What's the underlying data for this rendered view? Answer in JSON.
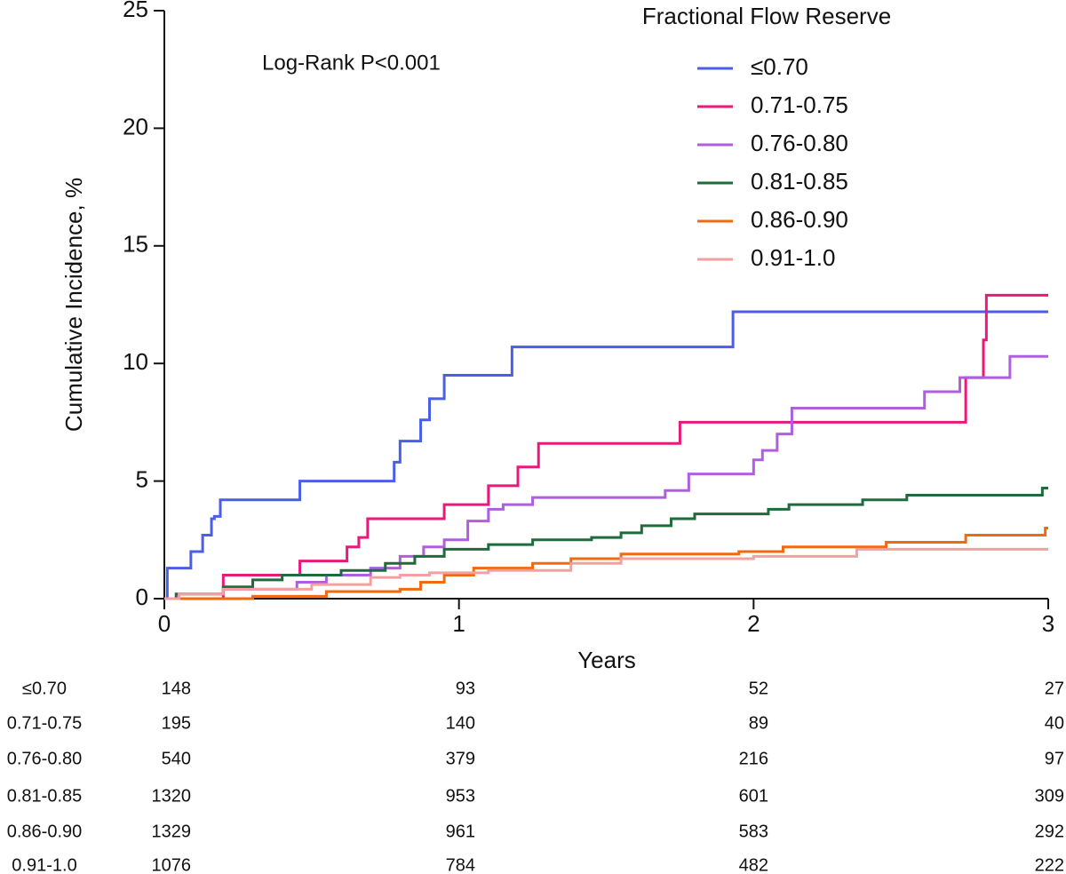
{
  "chart_data": {
    "type": "line",
    "drawstyle": "steps-post",
    "legend_title": "Fractional Flow Reserve",
    "annotation": "Log-Rank P<0.001",
    "x_label": "Years",
    "y_label": "Cumulative Incidence, %",
    "xlim": [
      0,
      3
    ],
    "xticks": [
      0,
      1,
      2,
      3
    ],
    "ylim": [
      0,
      25
    ],
    "yticks": [
      0,
      5,
      10,
      15,
      20,
      25
    ],
    "grid": false,
    "legend_position": "upper right",
    "series": [
      {
        "name": "≤0.70",
        "color": "#4b5ee8",
        "x": [
          0,
          0.01,
          0.09,
          0.13,
          0.16,
          0.17,
          0.19,
          0.46,
          0.78,
          0.8,
          0.87,
          0.9,
          0.95,
          1.18,
          1.93,
          3.0
        ],
        "values": [
          0,
          1.3,
          2.0,
          2.7,
          3.4,
          3.5,
          4.2,
          5.0,
          5.8,
          6.7,
          7.6,
          8.5,
          9.5,
          10.7,
          12.2,
          12.2
        ]
      },
      {
        "name": "0.71-0.75",
        "color": "#e8197a",
        "x": [
          0,
          0.2,
          0.46,
          0.62,
          0.66,
          0.69,
          0.95,
          1.1,
          1.2,
          1.27,
          1.75,
          2.72,
          2.78,
          2.79,
          3.0
        ],
        "values": [
          0,
          1.0,
          1.6,
          2.2,
          2.6,
          3.4,
          4.0,
          4.8,
          5.6,
          6.6,
          7.5,
          9.4,
          11.0,
          12.9,
          12.9
        ]
      },
      {
        "name": "0.76-0.80",
        "color": "#b05ee0",
        "x": [
          0,
          0.05,
          0.2,
          0.45,
          0.55,
          0.7,
          0.8,
          0.88,
          0.95,
          1.03,
          1.1,
          1.15,
          1.25,
          1.7,
          1.78,
          2.0,
          2.03,
          2.08,
          2.13,
          2.58,
          2.7,
          2.87,
          3.0
        ],
        "values": [
          0,
          0.2,
          0.4,
          0.7,
          1.0,
          1.3,
          1.8,
          2.2,
          2.5,
          3.3,
          3.8,
          4.0,
          4.3,
          4.6,
          5.3,
          5.9,
          6.3,
          7.0,
          8.1,
          8.8,
          9.4,
          10.3,
          10.3
        ]
      },
      {
        "name": "0.81-0.85",
        "color": "#1e6b3c",
        "x": [
          0,
          0.04,
          0.2,
          0.3,
          0.4,
          0.6,
          0.75,
          0.85,
          0.95,
          1.1,
          1.25,
          1.45,
          1.55,
          1.62,
          1.72,
          1.8,
          2.05,
          2.12,
          2.37,
          2.52,
          2.98,
          3.0
        ],
        "values": [
          0,
          0.2,
          0.5,
          0.8,
          1.0,
          1.2,
          1.5,
          1.8,
          2.1,
          2.3,
          2.5,
          2.6,
          2.8,
          3.1,
          3.4,
          3.6,
          3.8,
          4.0,
          4.2,
          4.4,
          4.7,
          4.7
        ]
      },
      {
        "name": "0.86-0.90",
        "color": "#f06a10",
        "x": [
          0,
          0.3,
          0.55,
          0.8,
          0.87,
          0.95,
          1.05,
          1.25,
          1.38,
          1.55,
          1.95,
          2.1,
          2.45,
          2.72,
          2.99,
          3.0
        ],
        "values": [
          0,
          0.1,
          0.3,
          0.4,
          0.7,
          1.0,
          1.3,
          1.5,
          1.7,
          1.9,
          2.0,
          2.2,
          2.4,
          2.7,
          3.0,
          3.0
        ]
      },
      {
        "name": "0.91-1.0",
        "color": "#f5a0a0",
        "x": [
          0,
          0.05,
          0.2,
          0.5,
          0.7,
          0.8,
          0.9,
          1.1,
          1.38,
          1.55,
          2.0,
          2.35,
          3.0
        ],
        "values": [
          0,
          0.2,
          0.4,
          0.6,
          0.9,
          1.0,
          1.1,
          1.2,
          1.5,
          1.7,
          1.8,
          2.1,
          2.1
        ]
      }
    ],
    "risk_table": [
      [
        148,
        93,
        52,
        27
      ],
      [
        195,
        140,
        89,
        40
      ],
      [
        540,
        379,
        216,
        97
      ],
      [
        1320,
        953,
        601,
        309
      ],
      [
        1329,
        961,
        583,
        292
      ],
      [
        1076,
        784,
        482,
        222
      ]
    ]
  }
}
